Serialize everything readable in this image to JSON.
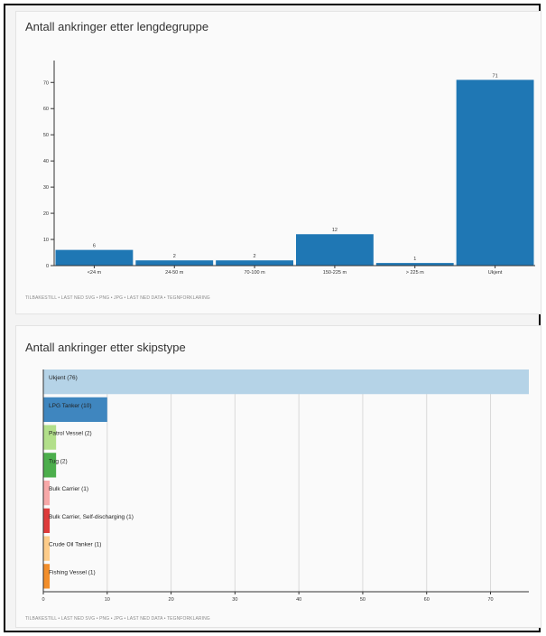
{
  "panels": [
    {
      "title": "Antall ankringer etter lengdegruppe",
      "footer": "TILBAKESTILL • LAST NED SVG • PNG • JPG • LAST NED DATA • TEGNFORKLARING"
    },
    {
      "title": "Antall ankringer etter skipstype",
      "footer": "TILBAKESTILL • LAST NED SVG • PNG • JPG • LAST NED DATA • TEGNFORKLARING"
    }
  ],
  "chart_data": [
    {
      "type": "bar",
      "title": "Antall ankringer etter lengdegruppe",
      "categories": [
        "<24 m",
        "24-50 m",
        "70-100 m",
        "150-225 m",
        "> 225 m",
        "Ukjent"
      ],
      "values": [
        6,
        2,
        2,
        12,
        1,
        71
      ],
      "data_labels": [
        "6",
        "2",
        "2",
        "12",
        "1",
        "71"
      ],
      "yticks": [
        "0",
        "10",
        "20",
        "30",
        "40",
        "50",
        "60",
        "70"
      ],
      "ylim": [
        0,
        77
      ],
      "color": "#1f77b4",
      "grid": false
    },
    {
      "type": "bar",
      "orientation": "horizontal",
      "title": "Antall ankringer etter skipstype",
      "categories": [
        "Ukjent",
        "LPG Tanker",
        "Patrol Vessel",
        "Tug",
        "Bulk Carrier",
        "Bulk Carrier, Self-discharging",
        "Crude Oil Tanker",
        "Fishing Vessel"
      ],
      "values": [
        76,
        10,
        2,
        2,
        1,
        1,
        1,
        1
      ],
      "labels": [
        "Ukjent (76)",
        "LPG Tanker (10)",
        "Patrol Vessel (2)",
        "Tug (2)",
        "Bulk Carrier (1)",
        "Bulk Carrier, Self-discharging (1)",
        "Crude Oil Tanker (1)",
        "Fishing Vessel (1)"
      ],
      "colors": [
        "#b5d3e7",
        "#3f86bf",
        "#b2df8a",
        "#4cae4c",
        "#f7a8a8",
        "#de3b3b",
        "#fdcc8a",
        "#f28e2b"
      ],
      "xticks": [
        "0",
        "10",
        "20",
        "30",
        "40",
        "50",
        "60",
        "70"
      ],
      "xlim": [
        0,
        76
      ],
      "grid": true
    }
  ]
}
